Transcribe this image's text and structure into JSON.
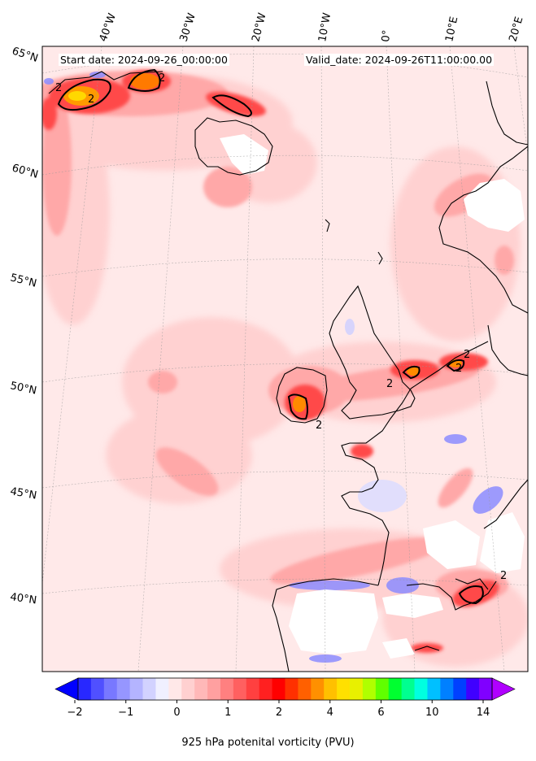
{
  "header": {
    "start_date": "Start date: 2024-09-26_00:00:00",
    "valid_date": "Valid_date: 2024-09-26T11:00:00.00"
  },
  "longitude_labels": [
    "40°W",
    "30°W",
    "20°W",
    "10°W",
    "0°",
    "10°E",
    "20°E"
  ],
  "latitude_labels": [
    "65°N",
    "60°N",
    "55°N",
    "50°N",
    "45°N",
    "40°N"
  ],
  "colorbar": {
    "label": "925 hPa potenital vorticity (PVU)",
    "ticks": [
      "−2",
      "−1",
      "0",
      "1",
      "2",
      "4",
      "6",
      "10",
      "14"
    ],
    "colors": [
      "#0000ff",
      "#2828ff",
      "#5050ff",
      "#7878ff",
      "#9696ff",
      "#b4b4ff",
      "#d2d2ff",
      "#f0f0ff",
      "#ffe8e8",
      "#ffd0d0",
      "#ffb8b8",
      "#ffa0a0",
      "#ff8080",
      "#ff6060",
      "#ff4040",
      "#ff2020",
      "#ff0000",
      "#ff3000",
      "#ff6000",
      "#ff9000",
      "#ffc000",
      "#ffe000",
      "#e8f000",
      "#b0ff00",
      "#60ff00",
      "#00ff30",
      "#00ff90",
      "#00ffe0",
      "#00c0ff",
      "#0080ff",
      "#0040ff",
      "#4000ff",
      "#8000ff",
      "#b000ff"
    ]
  },
  "contour_labels": [
    "2",
    "2",
    "2",
    "2",
    "2",
    "2",
    "2",
    "2"
  ]
}
